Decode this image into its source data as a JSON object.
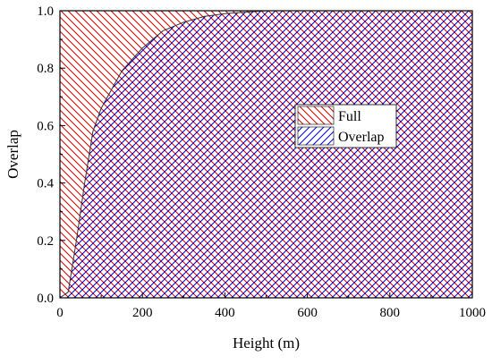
{
  "chart_data": {
    "type": "area",
    "xlabel": "Height (m)",
    "ylabel": "Overlap",
    "xlim": [
      0,
      1000
    ],
    "ylim": [
      0,
      1.0
    ],
    "x_ticks": [
      "0",
      "200",
      "400",
      "600",
      "800",
      "1000"
    ],
    "y_ticks": [
      "0.0",
      "0.2",
      "0.4",
      "0.6",
      "0.8",
      "1.0"
    ],
    "grid": false,
    "legend_position": "center-right",
    "series": [
      {
        "name": "Full",
        "color": "#cc0000",
        "hatch": "diagonal-down",
        "x": [
          0,
          1000
        ],
        "y": [
          1.0,
          1.0
        ]
      },
      {
        "name": "Overlap",
        "color": "#0000cc",
        "hatch": "diagonal-up",
        "x": [
          0,
          20,
          40,
          60,
          80,
          100,
          150,
          200,
          250,
          300,
          350,
          400,
          450,
          500,
          600,
          700,
          800,
          900,
          1000
        ],
        "y": [
          0.0,
          0.02,
          0.2,
          0.4,
          0.58,
          0.66,
          0.79,
          0.87,
          0.93,
          0.96,
          0.98,
          0.99,
          0.995,
          1.0,
          1.0,
          1.0,
          1.0,
          1.0,
          1.0
        ]
      }
    ]
  }
}
